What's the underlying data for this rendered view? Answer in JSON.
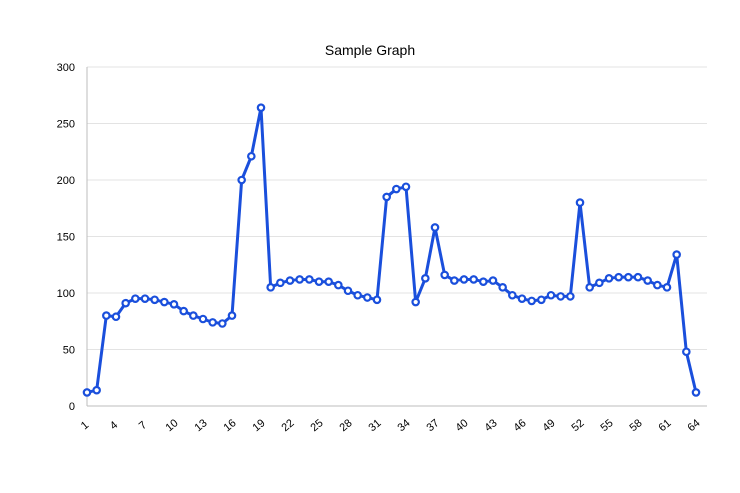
{
  "chart_data": {
    "type": "line",
    "title": "Sample Graph",
    "xlabel": "",
    "ylabel": "",
    "x": [
      1,
      2,
      3,
      4,
      5,
      6,
      7,
      8,
      9,
      10,
      11,
      12,
      13,
      14,
      15,
      16,
      17,
      18,
      19,
      20,
      21,
      22,
      23,
      24,
      25,
      26,
      27,
      28,
      29,
      30,
      31,
      32,
      33,
      34,
      35,
      36,
      37,
      38,
      39,
      40,
      41,
      42,
      43,
      44,
      45,
      46,
      47,
      48,
      49,
      50,
      51,
      52,
      53,
      54,
      55,
      56,
      57,
      58,
      59,
      60,
      61,
      62,
      63,
      64
    ],
    "x_tick_labels": [
      "1",
      "4",
      "7",
      "10",
      "13",
      "16",
      "19",
      "22",
      "25",
      "28",
      "31",
      "34",
      "37",
      "40",
      "43",
      "46",
      "49",
      "52",
      "55",
      "58",
      "61",
      "64"
    ],
    "ylim": [
      0,
      300
    ],
    "y_ticks": [
      0,
      50,
      100,
      150,
      200,
      250,
      300
    ],
    "grid": true,
    "legend": "none",
    "series": [
      {
        "color": "#1a4fdc",
        "values": [
          12,
          14,
          80,
          79,
          91,
          95,
          95,
          94,
          92,
          90,
          84,
          80,
          77,
          74,
          73,
          80,
          200,
          221,
          264,
          105,
          109,
          111,
          112,
          112,
          110,
          110,
          107,
          102,
          98,
          96,
          94,
          185,
          192,
          194,
          92,
          113,
          158,
          116,
          111,
          112,
          112,
          110,
          111,
          105,
          98,
          95,
          93,
          94,
          98,
          97,
          97,
          180,
          105,
          109,
          113,
          114,
          114,
          114,
          111,
          107,
          105,
          134,
          48,
          12
        ]
      }
    ]
  }
}
